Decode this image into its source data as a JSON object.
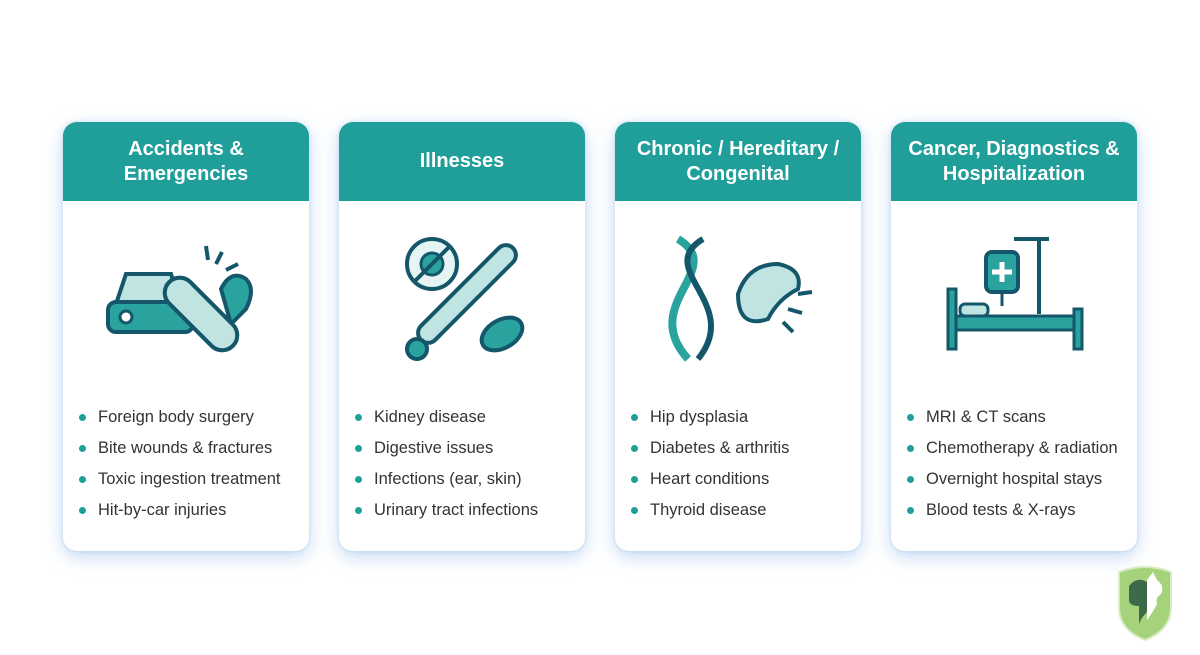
{
  "cards": [
    {
      "title": "Accidents & Emergencies",
      "icon": "car-bandage-paw-icon",
      "items": [
        "Foreign body surgery",
        "Bite wounds & fractures",
        "Toxic ingestion treatment",
        "Hit-by-car injuries"
      ]
    },
    {
      "title": "Illnesses",
      "icon": "thermometer-virus-bacteria-icon",
      "items": [
        "Kidney disease",
        "Digestive issues",
        "Infections (ear, skin)",
        "Urinary tract infections"
      ]
    },
    {
      "title": "Chronic / Hereditary / Congenital",
      "icon": "dna-joint-icon",
      "items": [
        "Hip dysplasia",
        "Diabetes & arthritis",
        "Heart conditions",
        "Thyroid disease"
      ]
    },
    {
      "title": "Cancer, Diagnostics & Hospitalization",
      "icon": "hospital-bed-iv-icon",
      "items": [
        "MRI & CT scans",
        "Chemotherapy & radiation",
        "Overnight hospital stays",
        "Blood tests & X-rays"
      ]
    }
  ],
  "colors": {
    "header": "#1f9e9a",
    "accent": "#1f9e9a",
    "logo": "#8cc152"
  },
  "logo": {
    "icon": "dog-cat-shield-logo"
  }
}
